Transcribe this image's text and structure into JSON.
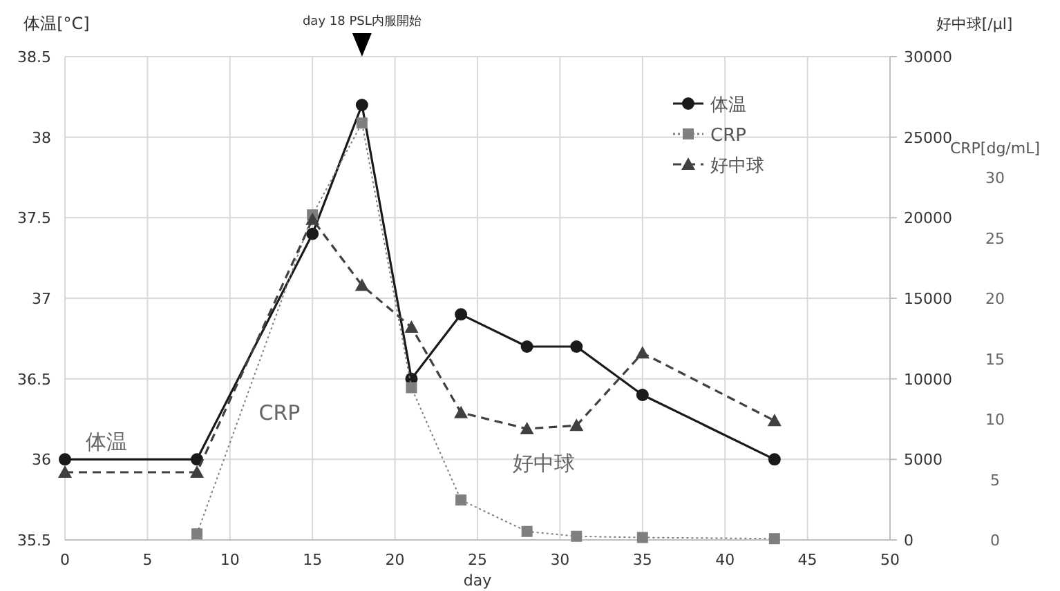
{
  "chart_data": {
    "type": "line",
    "xlabel": "day",
    "ylabel": "体温[°C]",
    "y2label": "好中球[/μl]",
    "y3label": "CRP[dg/mL]",
    "x": [
      0,
      8,
      15,
      18,
      21,
      24,
      28,
      31,
      35,
      43
    ],
    "xlim": [
      0,
      50
    ],
    "xticks": [
      0,
      5,
      10,
      15,
      20,
      25,
      30,
      35,
      40,
      45,
      50
    ],
    "ylim": [
      35.5,
      38.5
    ],
    "yticks": [
      35.5,
      36,
      36.5,
      37,
      37.5,
      38,
      38.5
    ],
    "y2lim": [
      0,
      30000
    ],
    "y2ticks": [
      0,
      5000,
      10000,
      15000,
      20000,
      25000,
      30000
    ],
    "y3lim": [
      0,
      40
    ],
    "y3ticks": [
      0,
      5,
      10,
      15,
      20,
      25,
      30
    ],
    "grid": true,
    "legend": "top right",
    "series": [
      {
        "name": "体温",
        "color": "#1a1a1a",
        "marker": "circle",
        "line_style": "solid",
        "values": [
          36,
          36,
          37.4,
          38.2,
          36.5,
          36.9,
          36.7,
          36.7,
          36.4,
          36
        ]
      },
      {
        "name": "CRP",
        "color": "#7f7f7f",
        "marker": "square",
        "line_style": "dotted",
        "axis": "y3",
        "x": [
          8,
          15,
          18,
          21,
          24,
          28,
          31,
          35,
          43
        ],
        "values": [
          0.5,
          26.9,
          34.5,
          12.6,
          3.3,
          0.7,
          0.3,
          0.2,
          0.1
        ]
      },
      {
        "name": "好中球",
        "color": "#404040",
        "marker": "triangle",
        "line_style": "dashed",
        "axis": "y2",
        "values": [
          4200,
          4200,
          19900,
          15800,
          13200,
          7900,
          6900,
          7100,
          11600,
          7400
        ]
      }
    ],
    "annotations": [
      "day 18 PSL内服開始",
      "体温",
      "CRP",
      "好中球"
    ]
  }
}
